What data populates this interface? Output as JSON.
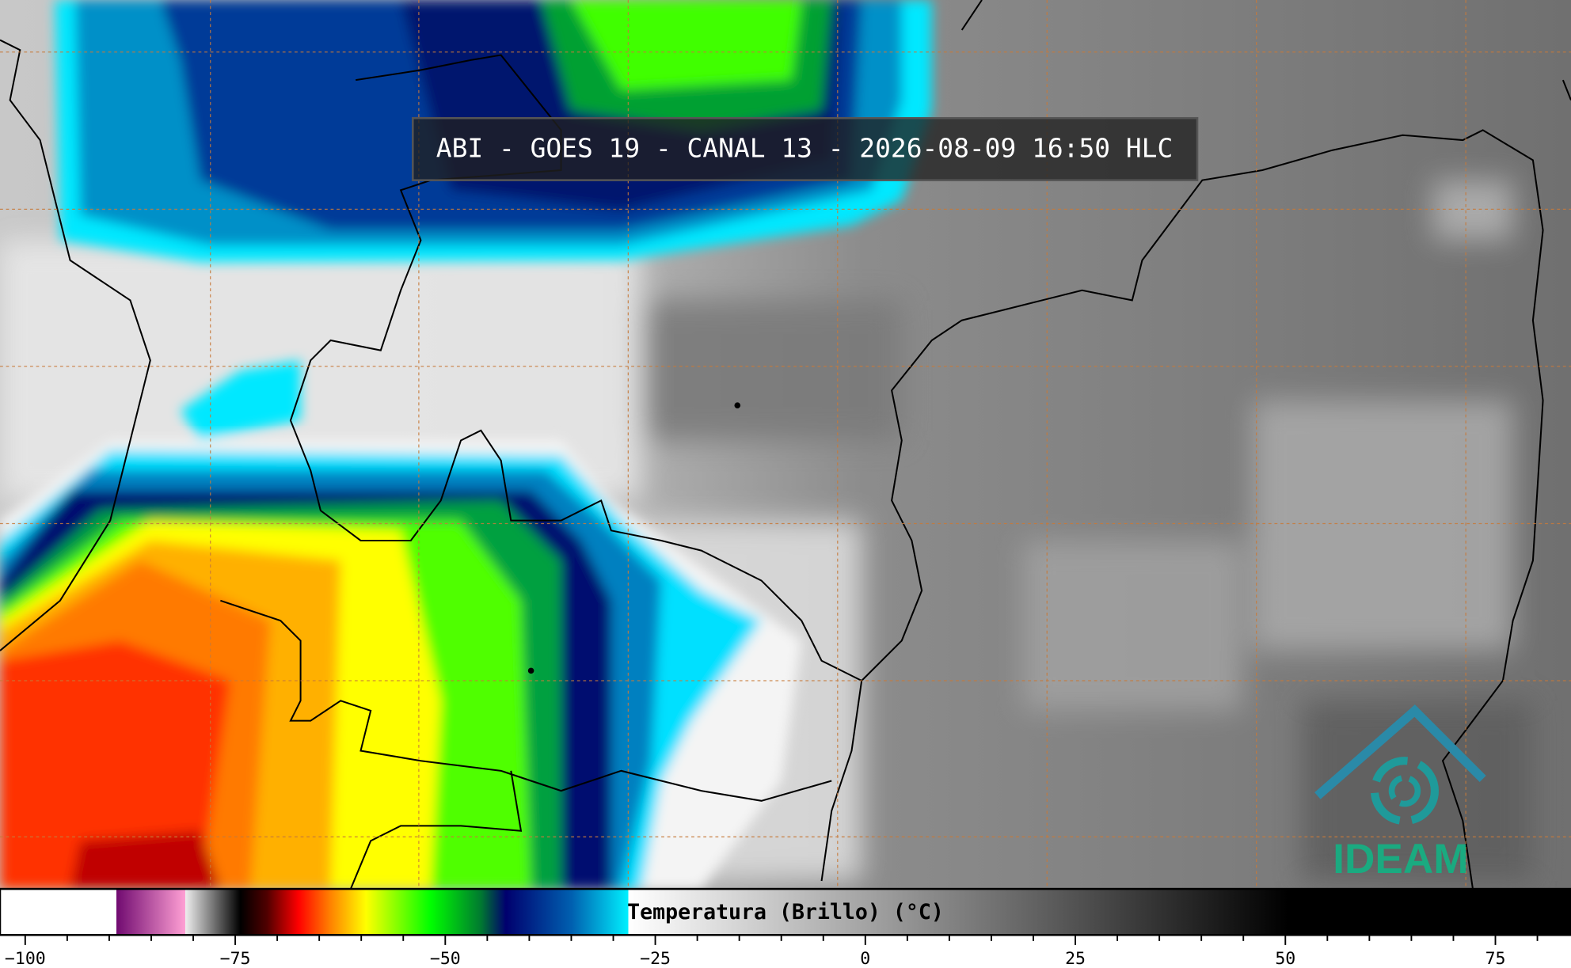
{
  "title": "ABI - GOES 19 - CANAL 13 - 2026-08-09 16:50 HLC",
  "logo": "IDEAM",
  "colorbar": {
    "label": "Temperatura (Brillo) (°C)",
    "lim": [
      -103,
      84
    ],
    "ticks": [
      {
        "value": -100,
        "label": "−100"
      },
      {
        "value": -75,
        "label": "−75"
      },
      {
        "value": -50,
        "label": "−50"
      },
      {
        "value": -25,
        "label": "−25"
      },
      0,
      25,
      50,
      75
    ],
    "minor_ticks": [
      -95,
      -90,
      -85,
      -80,
      -70,
      -65,
      -60,
      -55,
      -45,
      -40,
      -35,
      -30,
      -20,
      -15,
      -10,
      -5,
      5,
      10,
      15,
      20,
      30,
      35,
      40,
      45,
      55,
      60,
      65,
      70,
      80
    ]
  }
}
